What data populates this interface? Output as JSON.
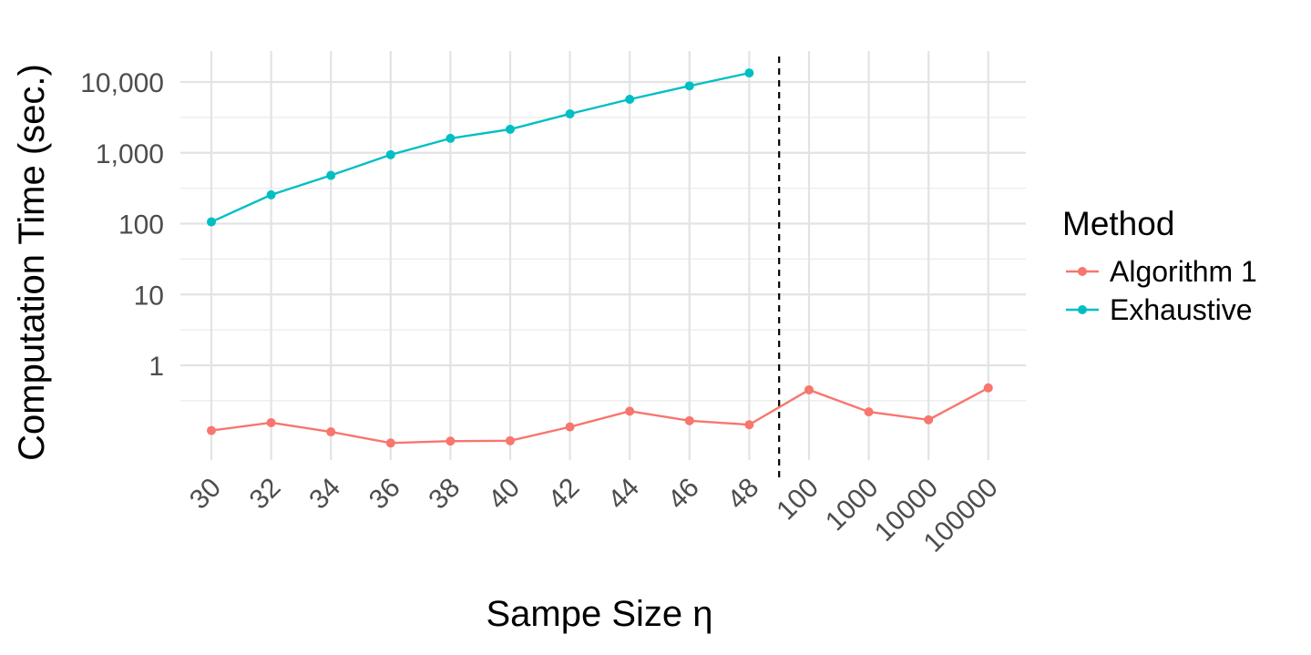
{
  "chart_data": {
    "type": "line",
    "title": "",
    "xlabel": "Sampe Size η",
    "ylabel": "Computation Time (sec.)",
    "y_scale": "log10",
    "ylim": [
      0.03,
      20000
    ],
    "y_ticks": [
      1,
      10,
      100,
      1000,
      10000
    ],
    "y_tick_labels": [
      "1",
      "10",
      "100",
      "1,000",
      "10,000"
    ],
    "categories": [
      "30",
      "32",
      "34",
      "36",
      "38",
      "40",
      "42",
      "44",
      "46",
      "48",
      "100",
      "1000",
      "10000",
      "100000"
    ],
    "x_tick_rotation": "45 degrees",
    "separator": {
      "style": "dashed vertical line",
      "between": [
        "48",
        "100"
      ]
    },
    "legend": {
      "title": "Method",
      "placement": "right"
    },
    "grid": true,
    "series": [
      {
        "name": "Algorithm 1",
        "color": "#F8766D",
        "values": [
          0.12,
          0.155,
          0.115,
          0.08,
          0.085,
          0.086,
          0.135,
          0.225,
          0.165,
          0.145,
          0.45,
          0.22,
          0.17,
          0.48
        ]
      },
      {
        "name": "Exhaustive",
        "color": "#00BFC4",
        "values": [
          106,
          255,
          480,
          940,
          1600,
          2150,
          3550,
          5700,
          8800,
          13400,
          null,
          null,
          null,
          null
        ]
      }
    ]
  }
}
